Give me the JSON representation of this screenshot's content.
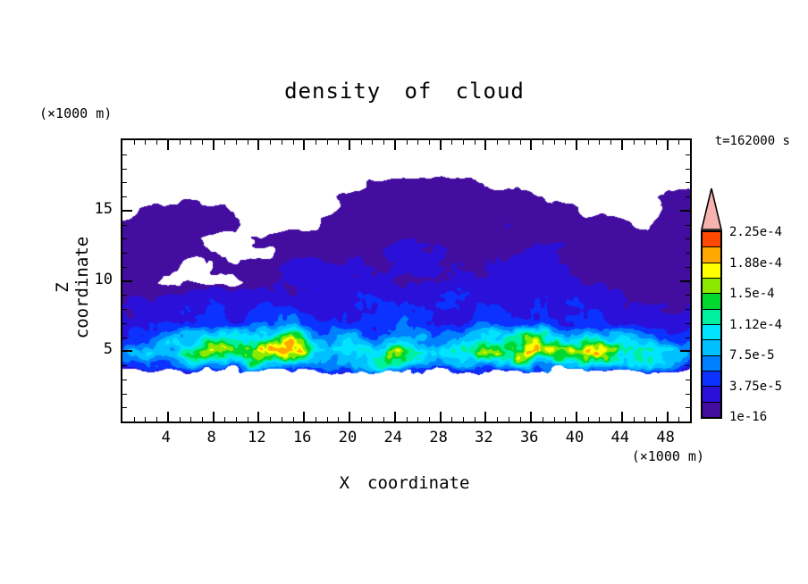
{
  "title": "density of cloud",
  "time_label": "t=162000 s",
  "axes": {
    "x": {
      "label": "X coordinate",
      "unit_label": "(×1000 m)",
      "min": 0,
      "max": 50,
      "major_ticks": [
        4,
        8,
        12,
        16,
        20,
        24,
        28,
        32,
        36,
        40,
        44,
        48
      ],
      "minor_tick_step": 1
    },
    "z": {
      "label": "Z coordinate",
      "unit_label": "(×1000 m)",
      "min": 0,
      "max": 20,
      "major_ticks": [
        5,
        10,
        15
      ],
      "minor_tick_step": 1
    }
  },
  "colorbar": {
    "tick_labels": [
      "2.25e-4",
      "1.88e-4",
      "1.5e-4",
      "1.12e-4",
      "7.5e-5",
      "3.75e-5",
      "1e-16"
    ],
    "segment_colors_bottom_to_top": [
      "#430da0",
      "#2a10d8",
      "#0b32ff",
      "#0080ff",
      "#00c0ff",
      "#00e4ff",
      "#00f0a0",
      "#00d830",
      "#8ce800",
      "#ffff00",
      "#ffa800",
      "#ff4800"
    ],
    "overflow_arrow_color": "#f6b3ae",
    "frame_color": "#000000"
  },
  "chart_data": {
    "type": "heatmap",
    "title": "density of cloud",
    "xlabel": "X coordinate (×1000 m)",
    "ylabel": "Z coordinate (×1000 m)",
    "time_annotation": "t=162000 s",
    "xlim": [
      0,
      50
    ],
    "ylim": [
      0,
      20
    ],
    "background_color": "#ffffff",
    "levels": [
      1e-16,
      1.875e-05,
      3.75e-05,
      5.625e-05,
      7.5e-05,
      9.375e-05,
      0.0001125,
      0.00013125,
      0.00015,
      0.00016875,
      0.0001875,
      0.00020625,
      0.000225
    ],
    "level_colors": [
      "#430da0",
      "#2a10d8",
      "#0b32ff",
      "#0080ff",
      "#00c0ff",
      "#00e4ff",
      "#00f0a0",
      "#00d830",
      "#8ce800",
      "#ffff00",
      "#ffa800",
      "#ff4800"
    ],
    "cloud_base_z": 3.55,
    "values_scale": 1e-05,
    "x_samples": [
      0,
      2,
      4,
      6,
      8,
      10,
      12,
      14,
      16,
      18,
      20,
      22,
      24,
      26,
      28,
      30,
      32,
      34,
      36,
      38,
      40,
      42,
      44,
      46,
      48,
      50
    ],
    "z_samples": [
      0,
      1,
      2,
      3,
      4,
      5,
      6,
      7,
      8,
      9,
      10,
      11,
      12,
      13,
      14,
      15,
      16,
      17,
      18,
      19,
      20
    ],
    "values": [
      [
        0,
        0,
        0,
        0,
        0,
        0,
        0,
        0,
        0,
        0,
        0,
        0,
        0,
        0,
        0,
        0,
        0,
        0,
        0,
        0,
        0,
        0,
        0,
        0,
        0,
        0
      ],
      [
        0,
        0,
        0,
        0,
        0,
        0,
        0,
        0,
        0,
        0,
        0,
        0,
        0,
        0,
        0,
        0,
        0,
        0,
        0,
        0,
        0,
        0,
        0,
        0,
        0,
        0
      ],
      [
        0,
        0,
        0,
        0,
        0,
        0,
        0,
        0,
        0,
        0,
        0,
        0,
        0,
        0,
        0,
        0,
        0,
        0,
        0,
        0,
        0,
        0,
        0,
        0,
        0,
        0
      ],
      [
        0,
        0,
        0,
        0,
        0,
        0,
        0,
        0,
        0,
        0,
        0,
        0,
        0,
        0,
        0,
        0,
        0,
        0,
        0,
        0,
        0,
        0,
        0,
        0,
        0,
        0
      ],
      [
        5,
        6,
        6,
        7,
        7,
        8,
        9,
        8,
        7,
        8,
        9,
        10,
        9,
        8,
        7,
        8,
        8,
        7,
        8,
        9,
        10,
        9,
        8,
        7,
        6,
        5
      ],
      [
        8,
        9,
        10,
        12,
        15,
        17,
        18,
        18.5,
        16,
        11,
        10,
        13,
        15,
        10,
        9,
        11,
        16,
        17.5,
        18,
        15,
        14,
        17,
        12,
        10,
        9,
        8
      ],
      [
        4,
        5,
        6,
        7,
        9,
        11,
        11,
        12,
        10,
        7,
        7,
        8,
        9,
        7,
        6,
        7,
        9,
        11,
        11,
        9,
        8,
        9,
        7,
        6,
        5,
        4
      ],
      [
        2.5,
        3,
        3.5,
        4,
        5,
        6,
        5.5,
        5.5,
        4.5,
        3.5,
        3.5,
        4.5,
        5.5,
        4.5,
        3.5,
        3.5,
        4.5,
        5.5,
        5.5,
        4.5,
        3.5,
        4,
        3.5,
        3.5,
        3,
        2.5
      ],
      [
        2,
        2.5,
        3,
        3.5,
        3.5,
        4,
        3.5,
        3.5,
        3,
        2.5,
        3,
        3.5,
        4.5,
        5,
        3.5,
        3,
        3.5,
        3.5,
        4,
        3.5,
        3,
        3,
        2.5,
        2.5,
        2,
        2
      ],
      [
        1.2,
        1.5,
        2,
        2.5,
        3,
        2.5,
        2,
        2,
        2,
        2.5,
        3.5,
        3.5,
        3,
        3,
        4.5,
        3.5,
        3,
        2,
        2,
        2.5,
        3,
        2,
        2,
        1.5,
        1.5,
        1.2
      ],
      [
        1.2,
        1.2,
        0,
        0,
        0,
        0,
        1.5,
        2,
        2,
        2,
        2,
        2.5,
        2,
        2,
        2,
        2.5,
        3,
        2,
        2,
        2,
        2,
        1.5,
        1.5,
        1.2,
        1.2,
        1.2
      ],
      [
        1.2,
        1.2,
        1.2,
        0,
        1,
        1.2,
        1.5,
        2,
        2.5,
        2,
        2,
        2,
        2,
        2.5,
        2,
        2,
        2,
        2,
        2,
        2,
        1.5,
        1.5,
        1.5,
        1.2,
        1.2,
        1.2
      ],
      [
        1.2,
        1.2,
        1.2,
        1,
        1,
        0,
        0,
        1,
        1.2,
        1.2,
        1.5,
        1.5,
        2,
        2,
        1.5,
        1.2,
        1.2,
        1.5,
        2,
        1.5,
        1.2,
        1.2,
        1.2,
        1.2,
        1.2,
        1.2
      ],
      [
        1.3,
        1.3,
        1.2,
        1,
        0,
        0,
        1,
        1.2,
        1.2,
        1.2,
        1.2,
        1.2,
        1.5,
        1.5,
        1.2,
        1.2,
        1.2,
        1.2,
        1.2,
        1.2,
        1.2,
        1.5,
        1.2,
        1.2,
        1.2,
        1.2
      ],
      [
        1.2,
        1.3,
        1.3,
        1.3,
        1.2,
        1,
        0,
        0,
        0,
        1,
        1.3,
        1.3,
        1.3,
        1.3,
        1.3,
        1.3,
        1.3,
        1.3,
        1.3,
        1.3,
        1.2,
        1.2,
        1.2,
        0,
        1.2,
        1.3
      ],
      [
        0,
        1.2,
        1.3,
        1.3,
        1.2,
        0,
        0,
        0,
        0,
        0,
        1.3,
        1.3,
        1.3,
        1.4,
        1.4,
        1.3,
        1.3,
        1.3,
        1.3,
        1.3,
        1.2,
        0,
        0,
        0,
        1.2,
        1.3
      ],
      [
        0,
        0,
        0,
        0,
        0,
        0,
        0,
        0,
        0,
        0,
        1.2,
        1.3,
        1.3,
        1.4,
        1.3,
        1.3,
        1.3,
        1.3,
        1.2,
        0,
        0,
        0,
        0,
        0,
        1.2,
        1.2
      ],
      [
        0,
        0,
        0,
        0,
        0,
        0,
        0,
        0,
        0,
        0,
        0,
        1,
        1.2,
        1.2,
        1.2,
        1.1,
        0,
        0,
        0,
        0,
        0,
        0,
        0,
        0,
        0,
        0
      ],
      [
        0,
        0,
        0,
        0,
        0,
        0,
        0,
        0,
        0,
        0,
        0,
        0,
        0,
        0,
        0,
        0,
        0,
        0,
        0,
        0,
        0,
        0,
        0,
        0,
        0,
        0
      ],
      [
        0,
        0,
        0,
        0,
        0,
        0,
        0,
        0,
        0,
        0,
        0,
        0,
        0,
        0,
        0,
        0,
        0,
        0,
        0,
        0,
        0,
        0,
        0,
        0,
        0,
        0
      ],
      [
        0,
        0,
        0,
        0,
        0,
        0,
        0,
        0,
        0,
        0,
        0,
        0,
        0,
        0,
        0,
        0,
        0,
        0,
        0,
        0,
        0,
        0,
        0,
        0,
        0,
        0
      ]
    ]
  }
}
